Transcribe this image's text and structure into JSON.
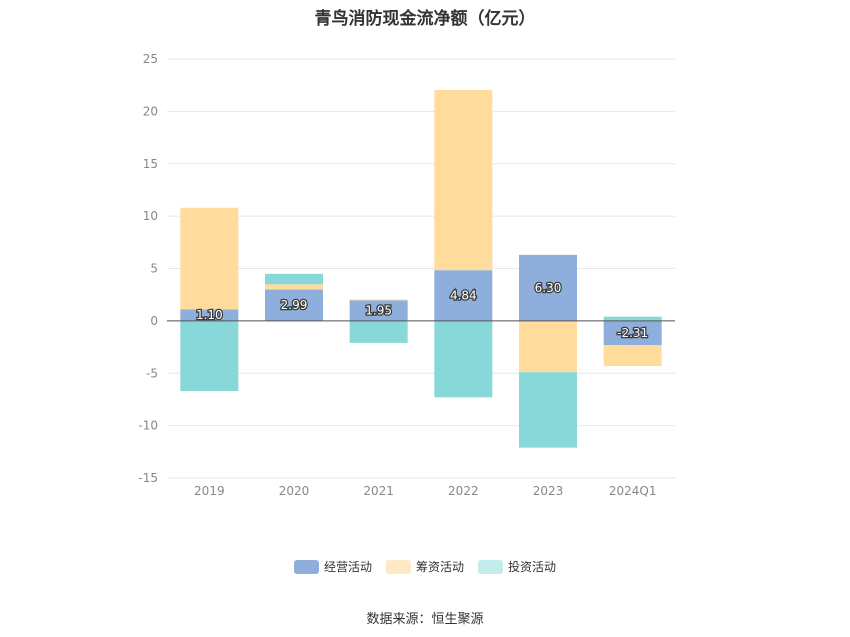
{
  "title": "青鸟消防现金流净额（亿元）",
  "source": "数据来源：恒生聚源",
  "chart_data": {
    "type": "bar",
    "stacked": true,
    "categories": [
      "2019",
      "2020",
      "2021",
      "2022",
      "2023",
      "2024Q1"
    ],
    "series": [
      {
        "name": "经营活动",
        "color": "#8eaedc",
        "values": [
          1.1,
          2.99,
          1.95,
          4.84,
          6.3,
          -2.31
        ]
      },
      {
        "name": "筹资活动",
        "color": "#ffdb9c",
        "values": [
          9.7,
          0.5,
          0.1,
          17.2,
          -4.9,
          -2.0
        ]
      },
      {
        "name": "投资活动",
        "color": "#88d8da",
        "values": [
          -6.7,
          1.0,
          -2.1,
          -7.3,
          -7.2,
          0.4
        ]
      }
    ],
    "data_labels": [
      "1.10",
      "2.99",
      "1.95",
      "4.84",
      "6.30",
      "-2.31"
    ],
    "legend_swatch_colors": [
      "#8eaedc",
      "#fde9c5",
      "#c3ecec"
    ],
    "ylim": [
      -15,
      25
    ],
    "yticks": [
      -15,
      -10,
      -5,
      0,
      5,
      10,
      15,
      20,
      25
    ],
    "legend_position": "bottom",
    "grid": true
  }
}
